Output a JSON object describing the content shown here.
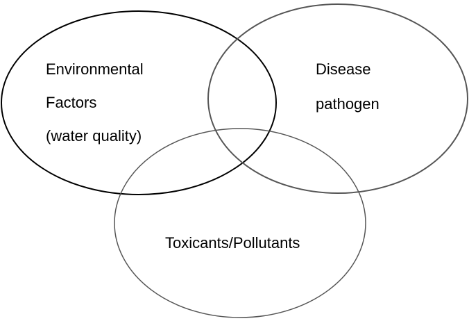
{
  "sets": [
    {
      "lines": [
        "Environmental",
        "Factors",
        "(water quality)"
      ]
    },
    {
      "lines": [
        "Disease",
        "pathogen"
      ]
    },
    {
      "lines": [
        "Toxicants/Pollutants"
      ]
    }
  ]
}
